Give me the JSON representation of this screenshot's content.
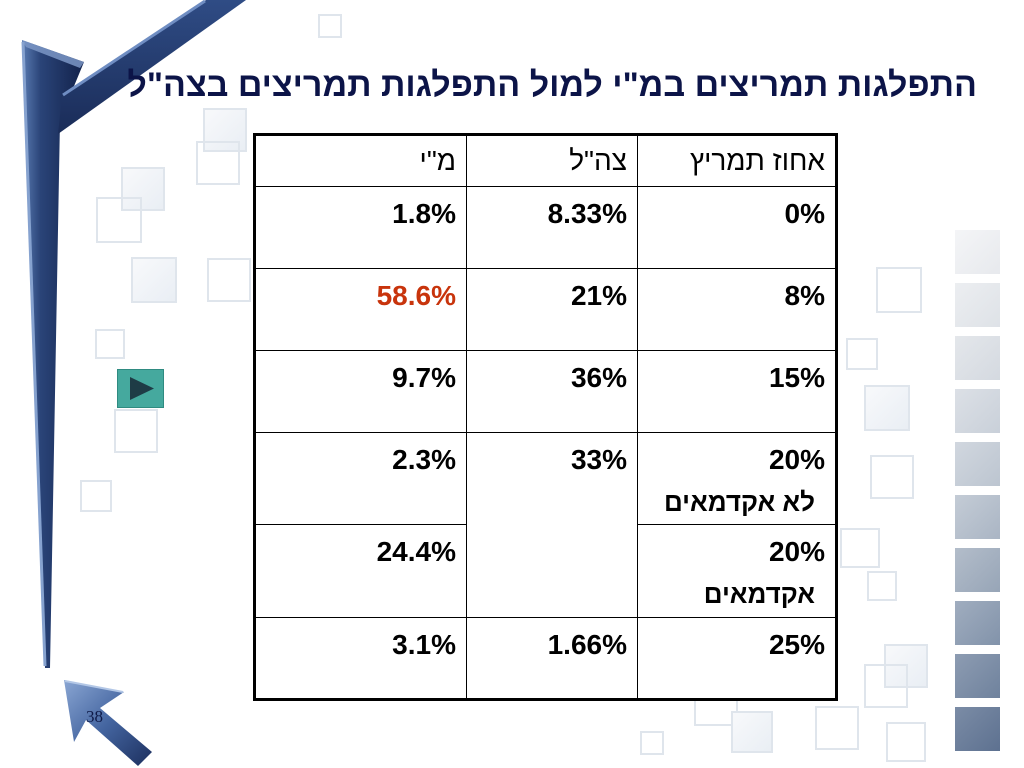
{
  "slide": {
    "title": "התפלגות תמריצים במ\"י למול התפלגות תמריצים בצה\"ל",
    "slide_number": "38",
    "nav_button_icon": "play-icon"
  },
  "table": {
    "headers": {
      "incentive": "אחוז תמריץ",
      "idf": "צה\"ל",
      "mi": "מ\"י"
    },
    "rows": [
      {
        "incentive": "0%",
        "idf": "8.33%",
        "mi": "1.8%"
      },
      {
        "incentive": "8%",
        "idf": "21%",
        "mi": "58.6%",
        "mi_highlighted": true
      },
      {
        "incentive": "15%",
        "idf": "36%",
        "mi": "9.7%"
      },
      {
        "incentive": "20%",
        "incentive_note": "לא אקדמאים",
        "idf": "33%",
        "mi": "2.3%"
      },
      {
        "incentive": "20%",
        "incentive_note": "אקדמאים",
        "mi": "24.4%"
      },
      {
        "incentive": "25%",
        "idf": "1.66%",
        "mi": "3.1%"
      }
    ]
  },
  "colors": {
    "title": "#0c1448",
    "text": "#000000",
    "highlight": "#c8340c",
    "nav_button": "#45a99e",
    "nav_icon": "#1e3c46"
  }
}
